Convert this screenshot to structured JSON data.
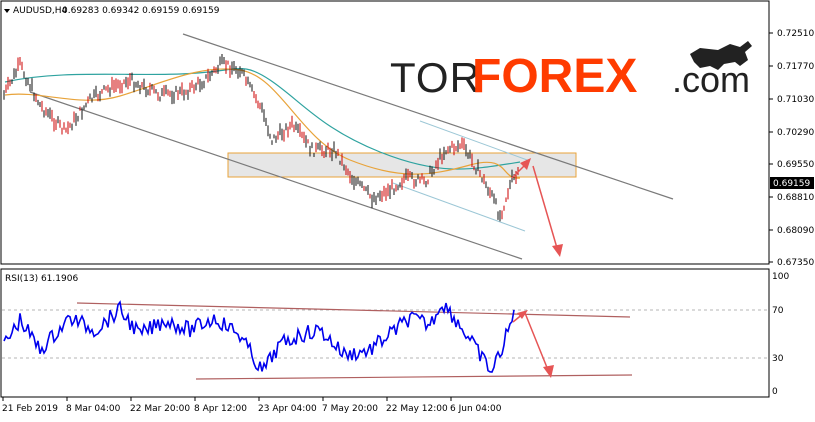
{
  "main_chart": {
    "symbol_info": "AUDUSD,H4",
    "quote": "0.69283 0.69342 0.69159 0.69159",
    "price_scale": [
      "0.72510",
      "0.71770",
      "0.71030",
      "0.70290",
      "0.69550",
      "0.68810",
      "0.68090",
      "0.67350"
    ],
    "current_price": "0.69159",
    "colors": {
      "candle": "#cc0000",
      "ma_slow": "#2fa3a0",
      "ma_fast": "#e8a33a",
      "channel": "#808080",
      "zone": "#e0e0e0",
      "arrow": "#e65555"
    }
  },
  "logo": {
    "tor": "TOR",
    "forex": "FOREX",
    "com": ".com"
  },
  "rsi": {
    "label": "RSI(13) 61.1906",
    "levels": [
      "100",
      "70",
      "30",
      "0"
    ],
    "colors": {
      "line": "#0000ee",
      "trend": "#b06060"
    }
  },
  "time_axis": [
    "21 Feb 2019",
    "8 Mar 04:00",
    "22 Mar 20:00",
    "8 Apr 12:00",
    "23 Apr 04:00",
    "7 May 20:00",
    "22 May 12:00",
    "6 Jun 04:00"
  ]
}
